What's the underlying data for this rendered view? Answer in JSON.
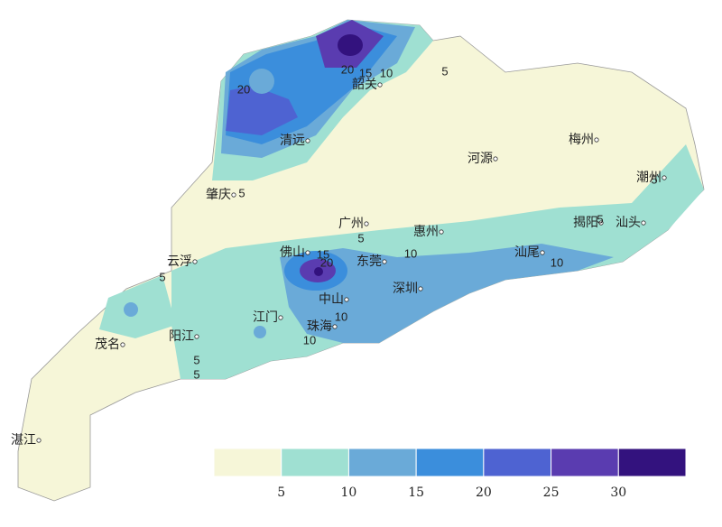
{
  "cities": [
    "韶关",
    "清远",
    "河源",
    "梅州",
    "潮州",
    "肇庆",
    "广州",
    "惠州",
    "揭阳",
    "汕头",
    "云浮",
    "佛山",
    "东莞",
    "汕尾",
    "深圳",
    "中山",
    "江门",
    "珠海",
    "阳江",
    "茂名",
    "湛江"
  ],
  "contour_labels": [
    20,
    15,
    10,
    5,
    20,
    5,
    5,
    10,
    15,
    20,
    5,
    10,
    10,
    10,
    5,
    5,
    5,
    5
  ],
  "legend": {
    "colors": [
      "#f6f6d8",
      "#9fe0d2",
      "#6aaad8",
      "#3b8edc",
      "#4e63d2",
      "#5a3cb0",
      "#33127e"
    ],
    "ticks": [
      5,
      10,
      15,
      20,
      25,
      30
    ]
  }
}
